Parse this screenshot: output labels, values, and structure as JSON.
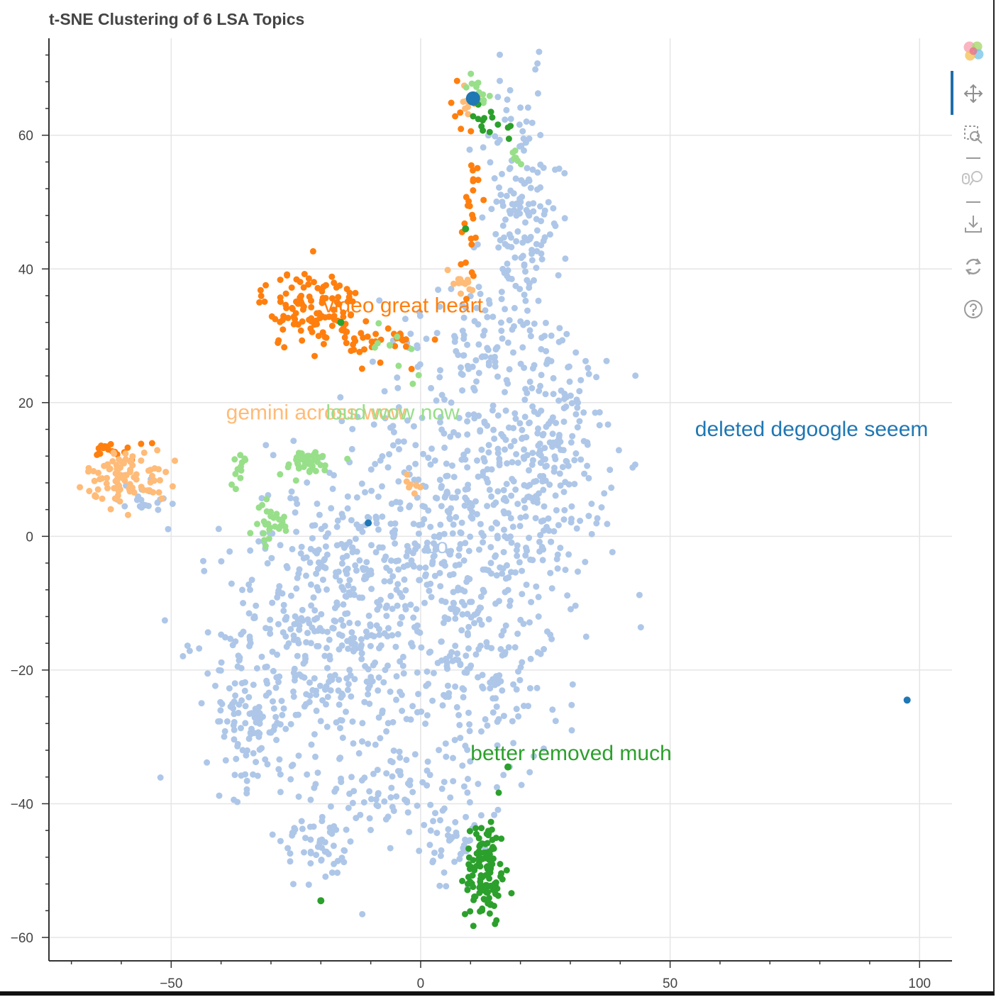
{
  "chart_data": {
    "type": "scatter",
    "title": "t-SNE Clustering of 6 LSA Topics",
    "xlabel": "",
    "ylabel": "",
    "xlim": [
      -74.5,
      106.5
    ],
    "ylim": [
      -63.5,
      74.5
    ],
    "x_ticks": [
      -50,
      0,
      50,
      100
    ],
    "y_ticks": [
      -60,
      -40,
      -20,
      0,
      20,
      40,
      60
    ],
    "x_tick_labels": [
      "−50",
      "0",
      "50",
      "100"
    ],
    "y_tick_labels": [
      "−60",
      "−40",
      "−20",
      "0",
      "20",
      "40",
      "60"
    ],
    "grid": true,
    "legend": "none",
    "series": [
      {
        "color": "#aec7e8",
        "clusters": [
          {
            "cx": 5,
            "cy": 0,
            "sx": 14,
            "sy": 12,
            "n": 520
          },
          {
            "cx": 25,
            "cy": 12,
            "sx": 6,
            "sy": 9,
            "n": 200
          },
          {
            "cx": 20,
            "cy": 48,
            "sx": 4,
            "sy": 10,
            "n": 170
          },
          {
            "cx": 10,
            "cy": 30,
            "sx": 8,
            "sy": 4,
            "n": 80
          },
          {
            "cx": -20,
            "cy": -15,
            "sx": 10,
            "sy": 10,
            "n": 360
          },
          {
            "cx": -35,
            "cy": -28,
            "sx": 4,
            "sy": 5,
            "n": 90
          },
          {
            "cx": -20,
            "cy": -45,
            "sx": 4,
            "sy": 4,
            "n": 60
          },
          {
            "cx": -5,
            "cy": -38,
            "sx": 5,
            "sy": 4,
            "n": 60
          },
          {
            "cx": 7,
            "cy": -47,
            "sx": 3,
            "sy": 4,
            "n": 40
          },
          {
            "cx": 10,
            "cy": -22,
            "sx": 8,
            "sy": 8,
            "n": 150
          },
          {
            "cx": -55,
            "cy": 6,
            "sx": 3,
            "sy": 2,
            "n": 20
          }
        ]
      },
      {
        "color": "#ff7f0e",
        "clusters": [
          {
            "cx": -22,
            "cy": 34,
            "sx": 5,
            "sy": 3,
            "n": 120
          },
          {
            "cx": -7,
            "cy": 29,
            "sx": 4,
            "sy": 1.5,
            "n": 30
          },
          {
            "cx": 10,
            "cy": 48,
            "sx": 1,
            "sy": 7,
            "n": 25
          },
          {
            "cx": 9,
            "cy": 64,
            "sx": 1.5,
            "sy": 1.5,
            "n": 8
          },
          {
            "cx": -61,
            "cy": 13,
            "sx": 2.5,
            "sy": 0.8,
            "n": 18
          }
        ]
      },
      {
        "color": "#ffbb78",
        "clusters": [
          {
            "cx": -59,
            "cy": 9,
            "sx": 4,
            "sy": 2,
            "n": 90
          },
          {
            "cx": 8,
            "cy": 38,
            "sx": 2,
            "sy": 1,
            "n": 12
          },
          {
            "cx": -2,
            "cy": 8,
            "sx": 1,
            "sy": 1,
            "n": 8
          },
          {
            "cx": 9,
            "cy": 64,
            "sx": 1,
            "sy": 2,
            "n": 6
          }
        ]
      },
      {
        "color": "#98df8a",
        "clusters": [
          {
            "cx": -23,
            "cy": 11,
            "sx": 3,
            "sy": 1,
            "n": 40
          },
          {
            "cx": -30,
            "cy": 2,
            "sx": 2,
            "sy": 1.5,
            "n": 30
          },
          {
            "cx": -36,
            "cy": 10,
            "sx": 0.7,
            "sy": 1.3,
            "n": 12
          },
          {
            "cx": 11,
            "cy": 67,
            "sx": 1.5,
            "sy": 1,
            "n": 12
          },
          {
            "cx": 20,
            "cy": 57,
            "sx": 1,
            "sy": 0.8,
            "n": 6
          },
          {
            "cx": -5,
            "cy": 28,
            "sx": 3,
            "sy": 2,
            "n": 10
          }
        ]
      },
      {
        "color": "#2ca02c",
        "clusters": [
          {
            "cx": 13,
            "cy": -50,
            "sx": 2,
            "sy": 4,
            "n": 120
          },
          {
            "cx": 12,
            "cy": 63,
            "sx": 1,
            "sy": 1,
            "n": 8
          },
          {
            "cx": 17,
            "cy": 61,
            "sx": 1.5,
            "sy": 0.7,
            "n": 6
          }
        ],
        "points": [
          [
            -20,
            -54.5
          ],
          [
            17.5,
            -34.5
          ],
          [
            -16,
            32
          ],
          [
            9,
            46
          ]
        ]
      },
      {
        "color": "#1f77b4",
        "points": [
          [
            10.5,
            65.5
          ],
          [
            -10.5,
            2
          ],
          [
            97.5,
            -24.5
          ]
        ]
      }
    ],
    "annotations": [
      {
        "text": "video great heart",
        "x": -19.5,
        "y": 33.5,
        "color": "#ff7f0e"
      },
      {
        "text": "gemini across wow",
        "x": -39,
        "y": 17.5,
        "color": "#ffbb78"
      },
      {
        "text": "loud wow now",
        "x": -19,
        "y": 17.5,
        "color": "#98df8a"
      },
      {
        "text": "deleted degoogle seeem",
        "x": 55,
        "y": 15,
        "color": "#1f77b4"
      },
      {
        "text": "better removed much",
        "x": 10,
        "y": -33.5,
        "color": "#2ca02c"
      },
      {
        "text": "co",
        "x": 1,
        "y": -2.5,
        "color": "#aec7e8"
      }
    ]
  },
  "toolbar": {
    "logo_icon": "bokeh-logo-icon",
    "tools": [
      "pan-icon",
      "box-zoom-icon",
      "wheel-zoom-icon",
      "save-icon",
      "reset-icon",
      "help-icon"
    ]
  }
}
